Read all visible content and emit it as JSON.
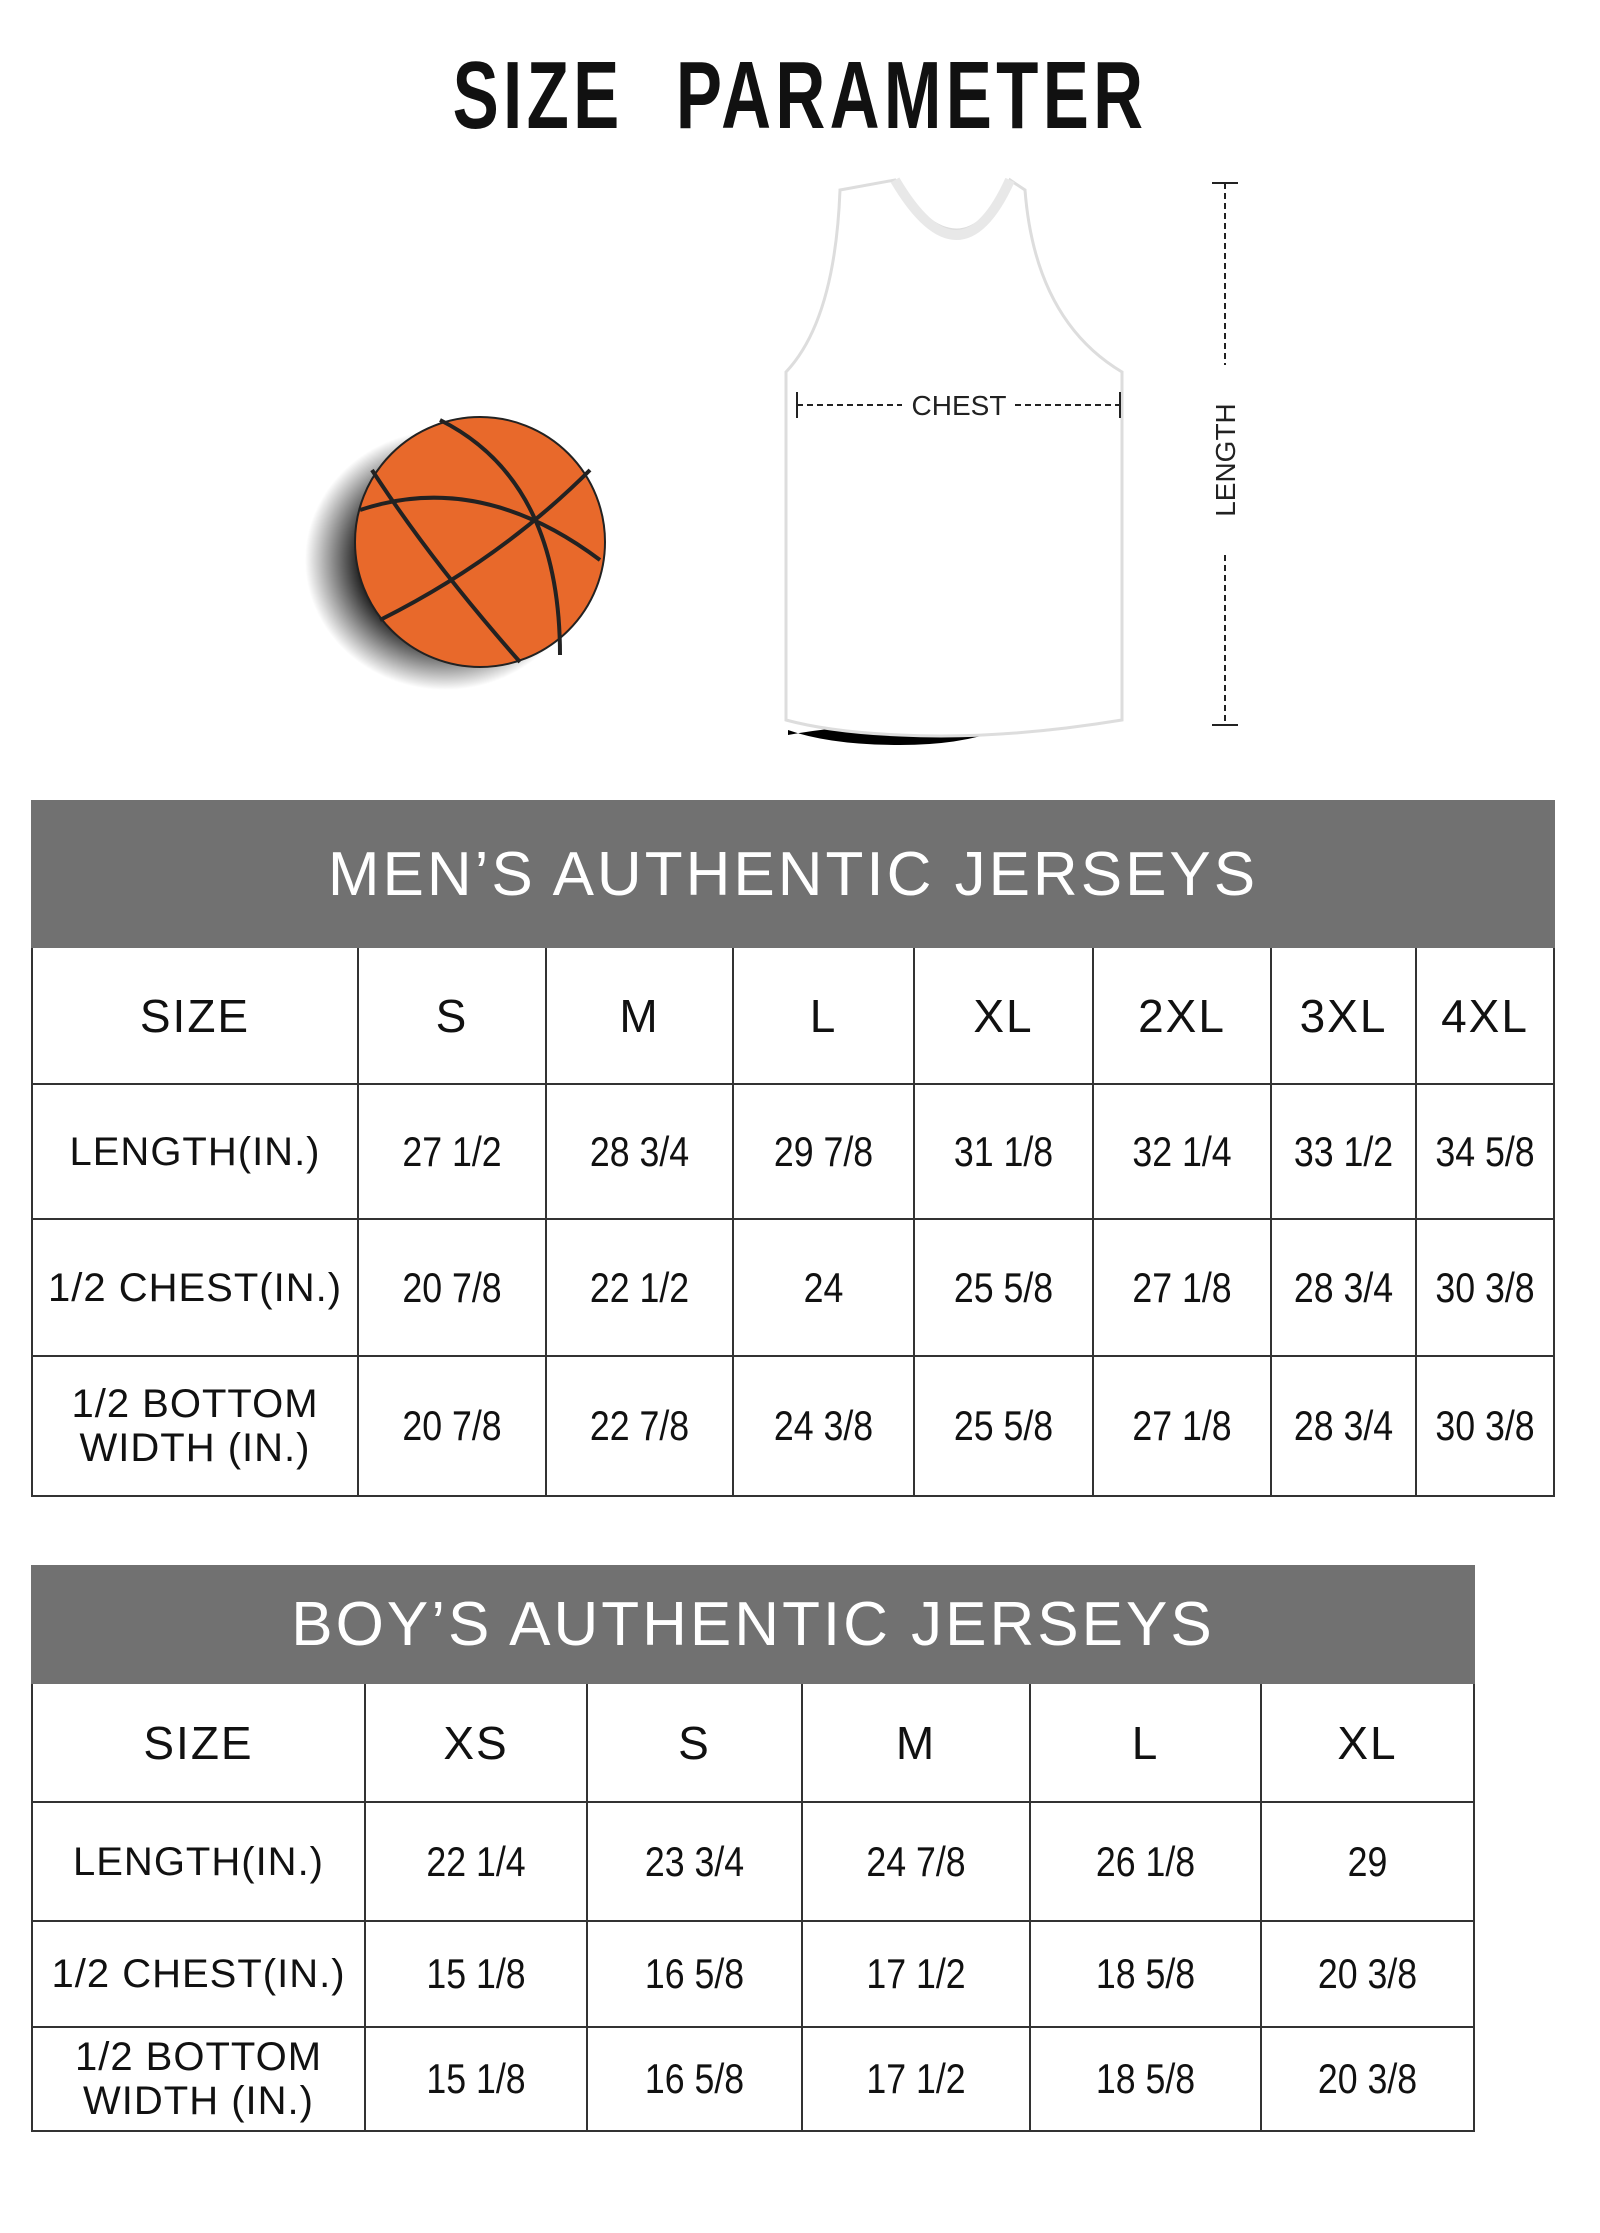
{
  "title": "SIZE PARAMETER",
  "diagram": {
    "chest_label": "CHEST",
    "length_label": "LENGTH",
    "ball_color": "#e8692b",
    "band_color": "#717171"
  },
  "mens": {
    "title": "MEN’S AUTHENTIC JERSEYS",
    "header": [
      "SIZE",
      "S",
      "M",
      "L",
      "XL",
      "2XL",
      "3XL",
      "4XL"
    ],
    "rows": [
      {
        "label": "LENGTH(IN.)",
        "values": [
          "27 1/2",
          "28 3/4",
          "29 7/8",
          "31 1/8",
          "32 1/4",
          "33 1/2",
          "34 5/8"
        ]
      },
      {
        "label": "1/2 CHEST(IN.)",
        "values": [
          "20 7/8",
          "22 1/2",
          "24",
          "25 5/8",
          "27 1/8",
          "28 3/4",
          "30 3/8"
        ]
      },
      {
        "label": "1/2 BOTTOM WIDTH (IN.)",
        "values": [
          "20 7/8",
          "22 7/8",
          "24 3/8",
          "25 5/8",
          "27 1/8",
          "28 3/4",
          "30 3/8"
        ]
      }
    ]
  },
  "boys": {
    "title": "BOY’S AUTHENTIC JERSEYS",
    "header": [
      "SIZE",
      "XS",
      "S",
      "M",
      "L",
      "XL"
    ],
    "rows": [
      {
        "label": "LENGTH(IN.)",
        "values": [
          "22 1/4",
          "23 3/4",
          "24 7/8",
          "26 1/8",
          "29"
        ]
      },
      {
        "label": "1/2 CHEST(IN.)",
        "values": [
          "15 1/8",
          "16 5/8",
          "17 1/2",
          "18 5/8",
          "20 3/8"
        ]
      },
      {
        "label": "1/2 BOTTOM WIDTH (IN.)",
        "values": [
          "15 1/8",
          "16 5/8",
          "17 1/2",
          "18 5/8",
          "20 3/8"
        ]
      }
    ]
  }
}
